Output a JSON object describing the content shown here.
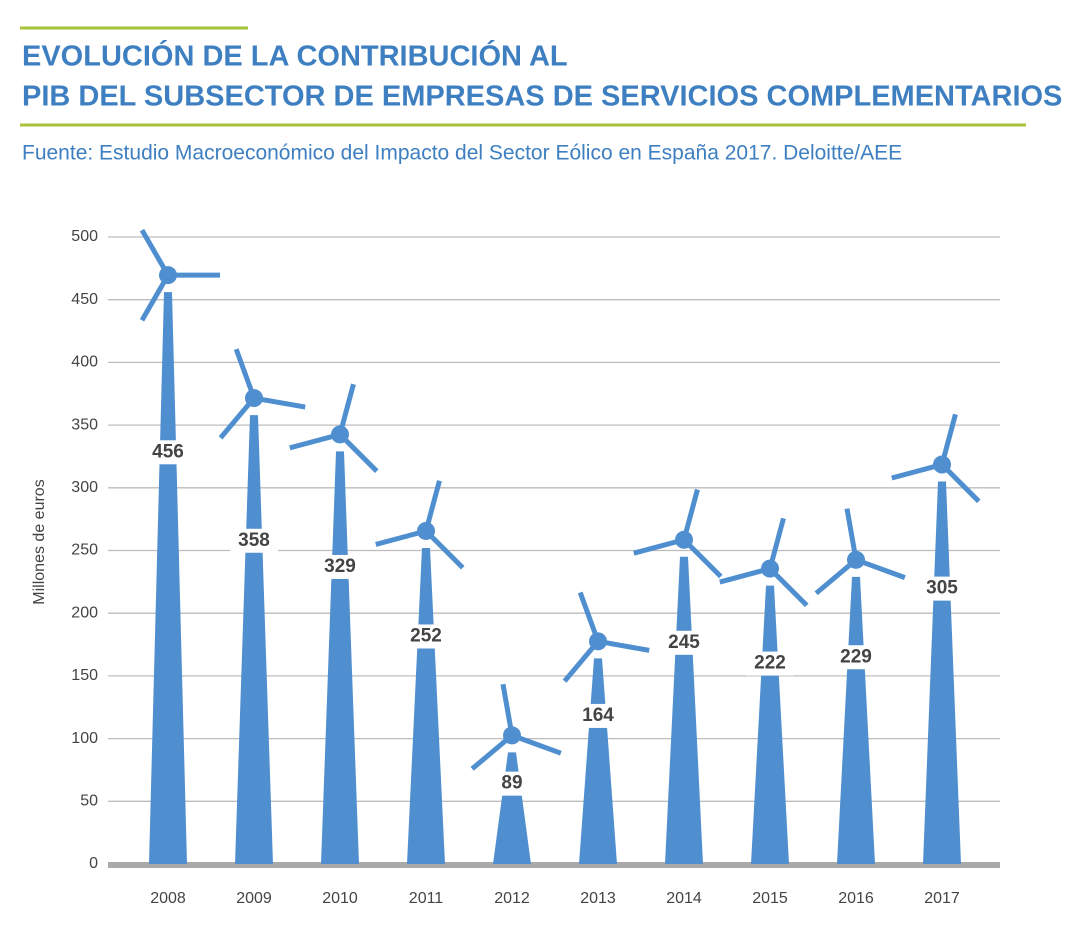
{
  "chart_data": {
    "type": "turbine",
    "title_lines": [
      "EVOLUCIÓN DE LA CONTRIBUCIÓN AL",
      "PIB DEL SUBSECTOR DE EMPRESAS DE SERVICIOS COMPLEMENTARIOS"
    ],
    "subtitle": "Fuente: Estudio Macroeconómico del Impacto del Sector Eólico en España 2017. Deloitte/AEE",
    "y_label": "Millones de euros",
    "categories": [
      "2008",
      "2009",
      "2010",
      "2011",
      "2012",
      "2013",
      "2014",
      "2015",
      "2016",
      "2017"
    ],
    "values": [
      456,
      358,
      329,
      252,
      89,
      164,
      245,
      222,
      229,
      305
    ],
    "color": "#4f8fcf",
    "ylim": [
      0,
      500
    ],
    "yticks": [
      0,
      50,
      100,
      150,
      200,
      250,
      300,
      350,
      400,
      450,
      500
    ],
    "grid": true
  }
}
